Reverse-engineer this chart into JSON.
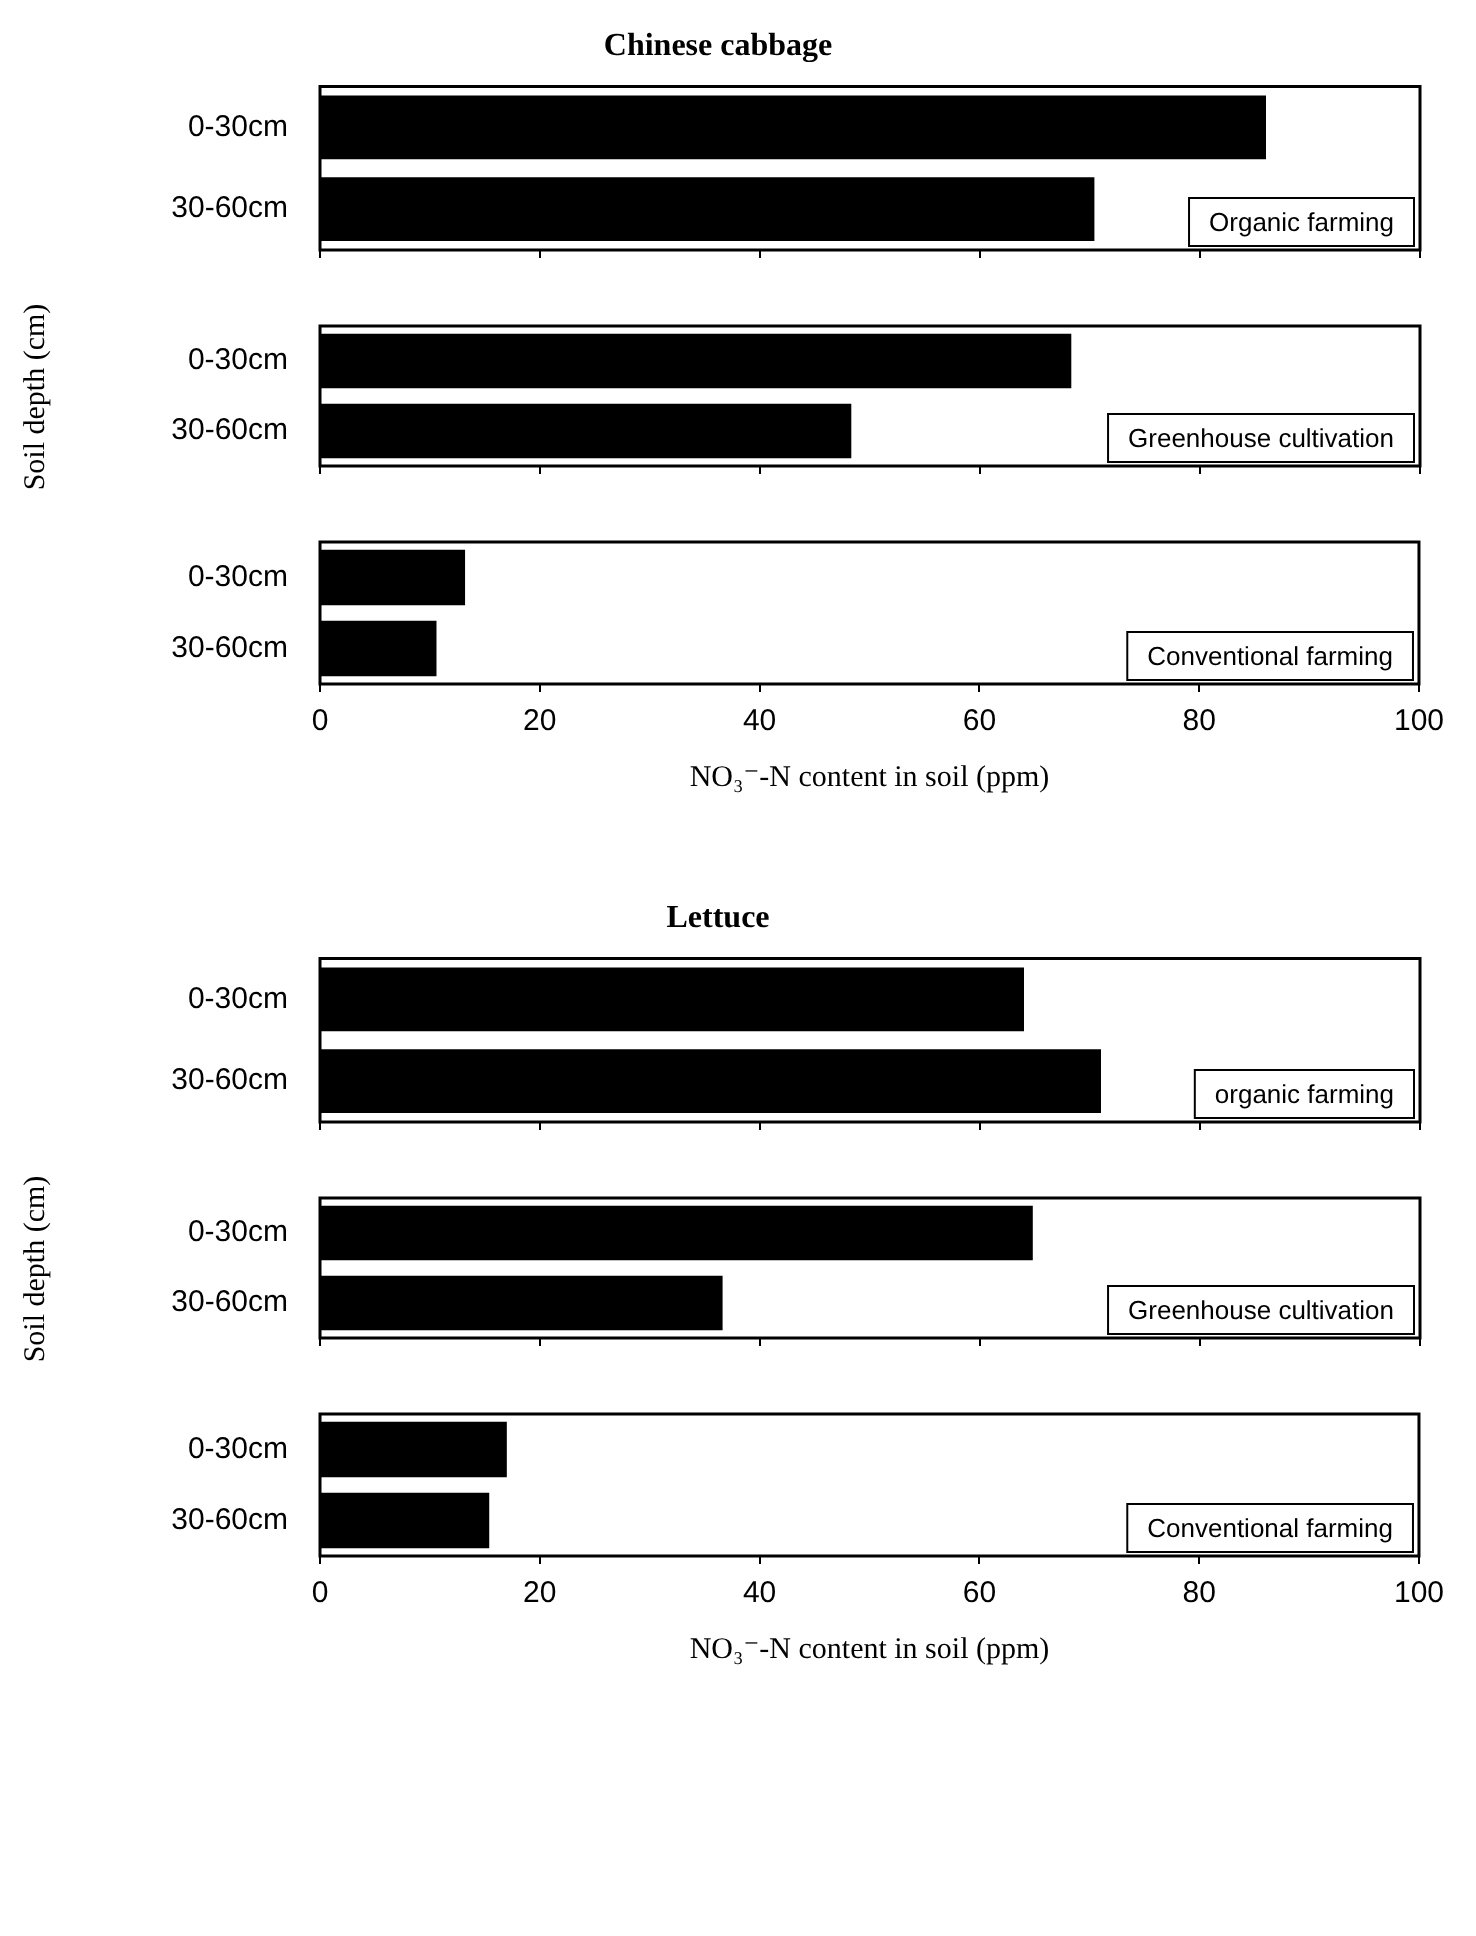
{
  "chart_data": [
    {
      "type": "bar",
      "orientation": "horizontal",
      "title": "Chinese cabbage",
      "categories": [
        "0-30cm",
        "30-60cm"
      ],
      "values": [
        86.0,
        70.4
      ],
      "color": "#000000",
      "xlim": [
        0,
        100
      ],
      "xticks": [
        0,
        20,
        40,
        60,
        80,
        100
      ],
      "tick_labels": "y",
      "legend": false,
      "annotations": [
        "Organic farming"
      ]
    },
    {
      "type": "bar",
      "orientation": "horizontal",
      "ylabel": "Soil depth (cm)",
      "categories": [
        "0-30cm",
        "30-60cm"
      ],
      "values": [
        68.3,
        48.3
      ],
      "color": "#000000",
      "xlim": [
        0,
        100
      ],
      "xticks": [
        0,
        20,
        40,
        60,
        80,
        100
      ],
      "tick_labels": "y",
      "legend": false,
      "annotations": [
        "Greenhouse cultivation"
      ]
    },
    {
      "type": "bar",
      "orientation": "horizontal",
      "xlabel": "NO₃⁻-N content in soil (ppm)",
      "categories": [
        "0-30cm",
        "30-60cm"
      ],
      "values": [
        13.2,
        10.6
      ],
      "color": "#000000",
      "xlim": [
        0,
        100
      ],
      "xticks": [
        0,
        20,
        40,
        60,
        80,
        100
      ],
      "legend": false,
      "annotations": [
        "Conventional farming"
      ]
    },
    {
      "type": "bar",
      "orientation": "horizontal",
      "title": "Lettuce",
      "categories": [
        "0-30cm",
        "30-60cm"
      ],
      "values": [
        64.0,
        71.0
      ],
      "color": "#000000",
      "xlim": [
        0,
        100
      ],
      "xticks": [
        0,
        20,
        40,
        60,
        80,
        100
      ],
      "tick_labels": "y",
      "legend": false,
      "annotations": [
        "organic farming"
      ]
    },
    {
      "type": "bar",
      "orientation": "horizontal",
      "ylabel": "Soil depth (cm)",
      "categories": [
        "0-30cm",
        "30-60cm"
      ],
      "values": [
        64.8,
        36.6
      ],
      "color": "#000000",
      "xlim": [
        0,
        100
      ],
      "xticks": [
        0,
        20,
        40,
        60,
        80,
        100
      ],
      "tick_labels": "y",
      "legend": false,
      "annotations": [
        "Greenhouse cultivation"
      ]
    },
    {
      "type": "bar",
      "orientation": "horizontal",
      "xlabel": "NO₃⁻-N content in soil (ppm)",
      "categories": [
        "0-30cm",
        "30-60cm"
      ],
      "values": [
        17.0,
        15.4
      ],
      "color": "#000000",
      "xlim": [
        0,
        100
      ],
      "xticks": [
        0,
        20,
        40,
        60,
        80,
        100
      ],
      "legend": false,
      "annotations": [
        "Conventional farming"
      ]
    }
  ]
}
